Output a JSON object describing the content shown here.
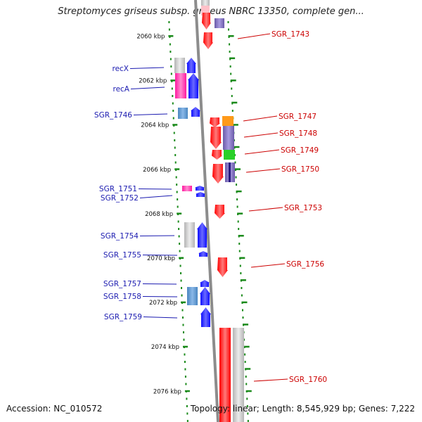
{
  "title": "Streptomyces griseus subsp. griseus NBRC 13350, complete gen...",
  "accession": "Accession: NC_010572",
  "summary": "Topology: linear; Length: 8,545,929 bp; Genes: 7,222",
  "axis": {
    "unit": "kbp",
    "ticks": [
      2060,
      2062,
      2064,
      2066,
      2068,
      2070,
      2072,
      2074,
      2076
    ]
  },
  "colors": {
    "backbone": "#8c8c8c",
    "left_label": "#1a1ab0",
    "right_label": "#cc0000",
    "tick_green": "#1a8a1a",
    "forward": "#0000ff",
    "reverse": "#ff0000",
    "grey": "#c8c8c8",
    "magenta": "#ff1aa0",
    "steel_blue": "#4a86c0",
    "purple": "#6a5aa8",
    "orange": "#ff9a1a",
    "green": "#2ad02a",
    "pink_light": "#ffc0c8"
  },
  "left_labels": [
    {
      "text": "recX"
    },
    {
      "text": "recA"
    },
    {
      "text": "SGR_1746"
    },
    {
      "text": "SGR_1751"
    },
    {
      "text": "SGR_1752"
    },
    {
      "text": "SGR_1754"
    },
    {
      "text": "SGR_1755"
    },
    {
      "text": "SGR_1757"
    },
    {
      "text": "SGR_1758"
    },
    {
      "text": "SGR_1759"
    }
  ],
  "right_labels": [
    {
      "text": "SGR_1743"
    },
    {
      "text": "SGR_1747"
    },
    {
      "text": "SGR_1748"
    },
    {
      "text": "SGR_1749"
    },
    {
      "text": "SGR_1750"
    },
    {
      "text": "SGR_1753"
    },
    {
      "text": "SGR_1756"
    },
    {
      "text": "SGR_1760"
    }
  ]
}
